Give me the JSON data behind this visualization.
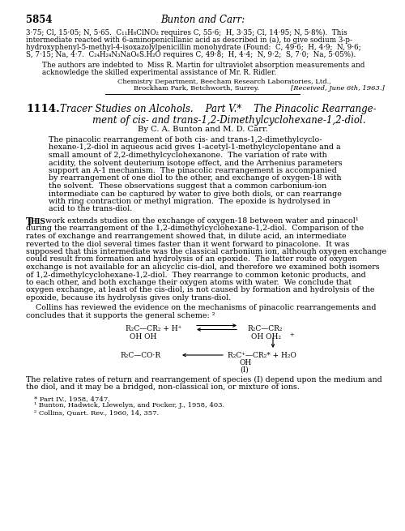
{
  "figsize": [
    5.0,
    6.55
  ],
  "dpi": 100,
  "bg_color": "#ffffff",
  "page_number": "5854",
  "journal_title": "Bunton and Carr:",
  "top_text_lines": [
    "3·75; Cl, 15·05; N, 5·65.  C₁₁H₈ClNO₂ requires C, 55·6;  H, 3·35; Cl, 14·95; N, 5·8%).  This",
    "intermediate reacted with 6-aminopenicillanic acid as described in (a), to give sodium 3-p-",
    "hydroxyphenyl-5-methyl-4-isoxazolylpenicillin monohydrate (Found:  C, 49·6;  H, 4·9;  N, 9·6;",
    "S, 7·15; Na, 4·7.  C₂₄H₂₄N₃NaO₆S.H₂O requires C, 49·8;  H, 4·4;  N, 9·2;  S, 7·0;  Na, 5·05%)."
  ],
  "acknowledgement_lines": [
    "The authors are indebted to  Miss R. Martin for ultraviolet absorption measurements and",
    "acknowledge the skilled experimental assistance of Mr. R. Ridler."
  ],
  "affiliation_line1": "Chemistry Department, Beecham Research Laboratories, Ltd.,",
  "affiliation_line2": "Brockham Park, Betchworth, Surrey.",
  "received": "[Received, June 6th, 1963.]",
  "article_number": "1114.",
  "article_title_line1": "Tracer Studies on Alcohols.    Part V.*    The Pinacolic Rearrange-",
  "article_title_line2": "ment of cis- and trans-1,2-Dimethylcyclohexane-1,2-diol.",
  "authors_line": "By C. A. Bunton and M. D. Carr.",
  "abstract_lines": [
    "The pinacolic rearrangement of both cis- and trans-1,2-dimethylcyclo-",
    "hexane-1,2-diol in aqueous acid gives 1-acetyl-1-methylcyclopentane and a",
    "small amount of 2,2-dimethylcyclohexanone.  The variation of rate with",
    "acidity, the solvent deuterium isotope effect, and the Arrhenius parameters",
    "support an A-1 mechanism.  The pinacolic rearrangement is accompanied",
    "by rearrangement of one diol to the other, and exchange of oxygen-18 with",
    "the solvent.  These observations suggest that a common carbonium-ion",
    "intermediate can be captured by water to give both diols, or can rearrange",
    "with ring contraction or methyl migration.  The epoxide is hydrolysed in",
    "acid to the trans-diol."
  ],
  "body_para1_lines": [
    "work extends studies on the exchange of oxygen-18 between water and pinacol¹",
    "during the rearrangement of the 1,2-dimethylcyclohexane-1,2-diol.  Comparison of the",
    "rates of exchange and rearrangement showed that, in dilute acid, an intermediate",
    "reverted to the diol several times faster than it went forward to pinacolone.  It was",
    "supposed that this intermediate was the classical carbonium ion, although oxygen exchange",
    "could result from formation and hydrolysis of an epoxide.  The latter route of oxygen",
    "exchange is not available for an alicyclic cis-diol, and therefore we examined both isomers",
    "of 1,2-dimethylcyclohexane-1,2-diol.  They rearrange to common ketonic products, and",
    "to each other, and both exchange their oxygen atoms with water.  We conclude that",
    "oxygen exchange, at least of the cis-diol, is not caused by formation and hydrolysis of the",
    "epoxide, because its hydrolysis gives only trans-diol."
  ],
  "body_para2_lines": [
    "    Collins has reviewed the evidence on the mechanisms of pinacolic rearrangements and",
    "concludes that it supports the general scheme: ²"
  ],
  "footnote_lines": [
    "* Part IV., 1958, 4747.",
    "¹ Bunton, Hadwick, Llewelyn, and Pocker, J., 1958, 403.",
    "² Collins, Quart. Rev., 1960, 14, 357."
  ],
  "bottom_text": "The relative rates of return and rearrangement of species (I) depend upon the medium and",
  "bottom_text2": "the diol, and it may be a bridged, non-classical ion, or mixture of ions."
}
